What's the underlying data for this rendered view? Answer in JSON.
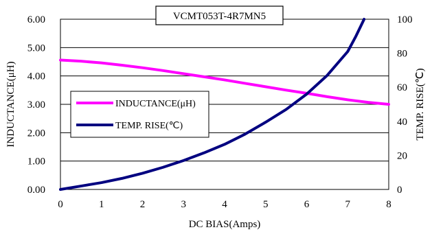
{
  "chart_data": {
    "type": "line",
    "title": "VCMT053T-4R7MN5",
    "xlabel": "DC BIAS(Amps)",
    "ylabel_left": "INDUCTANCE(μH)",
    "ylabel_right": "TEMP. RISE(℃)",
    "xlim": [
      0,
      8
    ],
    "ylim_left": [
      0,
      6
    ],
    "ylim_right": [
      0,
      100
    ],
    "x_ticks": [
      "0",
      "1",
      "2",
      "3",
      "4",
      "5",
      "6",
      "7",
      "8"
    ],
    "y_ticks_left": [
      "0.00",
      "1.00",
      "2.00",
      "3.00",
      "4.00",
      "5.00",
      "6.00"
    ],
    "y_ticks_right": [
      "0",
      "20",
      "40",
      "60",
      "80",
      "100"
    ],
    "grid": "horizontal",
    "legend_position": "left",
    "series": [
      {
        "name": "INDUCTANCE(μH)",
        "axis": "left",
        "color": "#ff00ff",
        "x": [
          0,
          0.5,
          1,
          1.5,
          2,
          2.5,
          3,
          3.5,
          4,
          4.5,
          5,
          5.5,
          6,
          6.5,
          7,
          7.5,
          8
        ],
        "y": [
          4.56,
          4.52,
          4.46,
          4.38,
          4.29,
          4.19,
          4.08,
          3.97,
          3.86,
          3.74,
          3.62,
          3.5,
          3.39,
          3.27,
          3.16,
          3.07,
          3.0
        ]
      },
      {
        "name": "TEMP. RISE(℃)",
        "axis": "right",
        "color": "#000080",
        "x": [
          0,
          0.5,
          1,
          1.5,
          2,
          2.5,
          3,
          3.5,
          4,
          4.5,
          5,
          5.5,
          6,
          6.5,
          7,
          7.2,
          7.4
        ],
        "y": [
          0,
          2,
          4,
          6.5,
          9.5,
          13,
          17,
          21.5,
          26.5,
          32.5,
          39.5,
          47,
          56,
          67,
          81,
          90,
          100
        ]
      }
    ]
  }
}
